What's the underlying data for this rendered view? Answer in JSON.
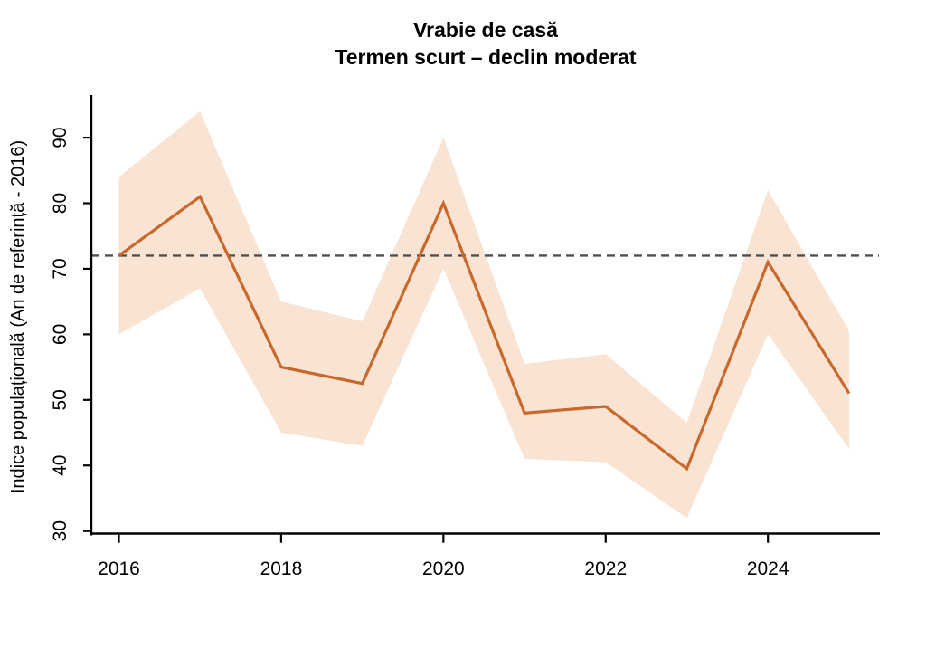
{
  "chart_data": {
    "type": "line",
    "title": "Vrabie de casă",
    "subtitle": "Termen scurt – declin moderat",
    "xlabel": "",
    "ylabel": "Indice populațională (An de referință - 2016)",
    "x": [
      2016,
      2017,
      2018,
      2019,
      2020,
      2021,
      2022,
      2023,
      2024,
      2025
    ],
    "series": [
      {
        "name": "indice_populational",
        "values": [
          72,
          81,
          55,
          52.5,
          80,
          48,
          49,
          39.5,
          71,
          51
        ]
      },
      {
        "name": "interval_incredere_superior",
        "values": [
          84,
          94,
          65,
          62,
          90,
          55.5,
          57,
          46.5,
          82,
          60.5
        ]
      },
      {
        "name": "interval_incredere_inferior",
        "values": [
          60,
          67,
          45,
          43,
          70,
          41,
          40.5,
          32,
          60,
          42.5
        ]
      }
    ],
    "reference_line_y": 72,
    "x_ticks": [
      2016,
      2018,
      2020,
      2022,
      2024
    ],
    "y_ticks": [
      30,
      40,
      50,
      60,
      70,
      80,
      90
    ],
    "xlim": [
      2015.66,
      2025.38
    ],
    "ylim": [
      29.5,
      96.5
    ],
    "grid": false,
    "legend": "none",
    "colors": {
      "line": "#C8682B",
      "band": "#F9E4D3",
      "reference_line": "#4F4F4F",
      "axis": "#000000",
      "background": "#FFFFFF"
    }
  }
}
